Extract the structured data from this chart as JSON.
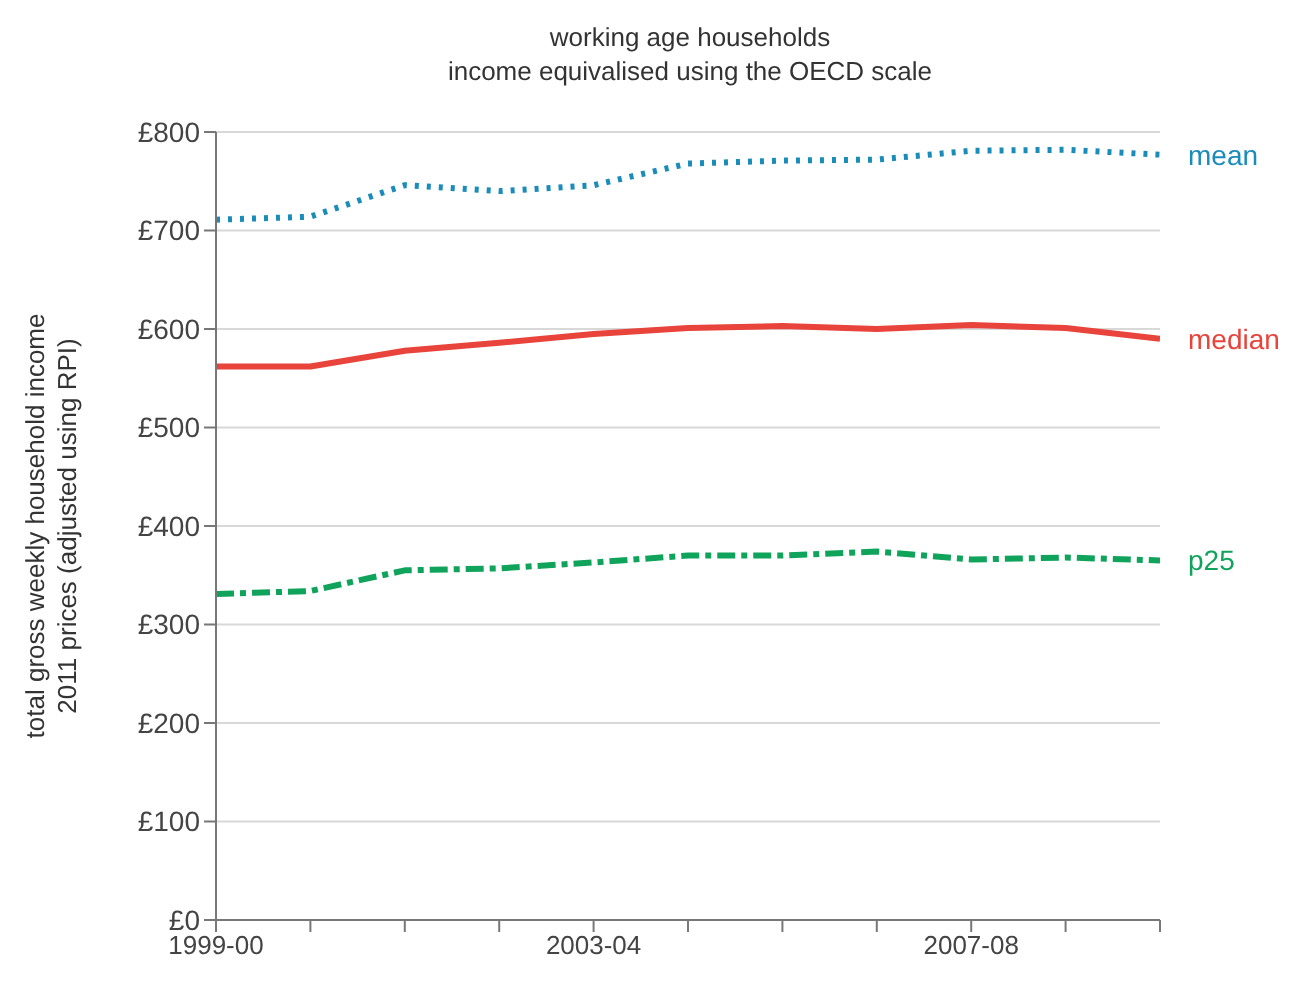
{
  "chart_data": {
    "type": "line",
    "title": "working age households",
    "subtitle": "income equivalised using the OECD scale",
    "ylabel": "total gross weekly household income\n2011 prices (adjusted using RPI)",
    "categories": [
      "1999-00",
      null,
      null,
      null,
      "2003-04",
      null,
      null,
      null,
      "2007-08",
      null,
      null
    ],
    "series": [
      {
        "name": "mean",
        "color": "#1a8cba",
        "line_style": "dotted",
        "values": [
          711,
          714,
          746,
          740,
          746,
          768,
          771,
          772,
          781,
          782,
          777
        ]
      },
      {
        "name": "median",
        "color": "#e8443c",
        "line_style": "solid",
        "values": [
          562,
          562,
          578,
          586,
          595,
          601,
          603,
          600,
          604,
          601,
          590
        ]
      },
      {
        "name": "p25",
        "color": "#10a35c",
        "line_style": "dashed",
        "values": [
          331,
          334,
          355,
          357,
          363,
          370,
          370,
          374,
          366,
          368,
          365
        ]
      }
    ],
    "ylim": [
      0,
      800
    ],
    "yticks": [
      {
        "value": 0,
        "label": "£0"
      },
      {
        "value": 100,
        "label": "£100"
      },
      {
        "value": 200,
        "label": "£200"
      },
      {
        "value": 300,
        "label": "£300"
      },
      {
        "value": 400,
        "label": "£400"
      },
      {
        "value": 500,
        "label": "£500"
      },
      {
        "value": 600,
        "label": "£600"
      },
      {
        "value": 700,
        "label": "£700"
      },
      {
        "value": 800,
        "label": "£800"
      }
    ],
    "grid": "y",
    "legend": false
  }
}
